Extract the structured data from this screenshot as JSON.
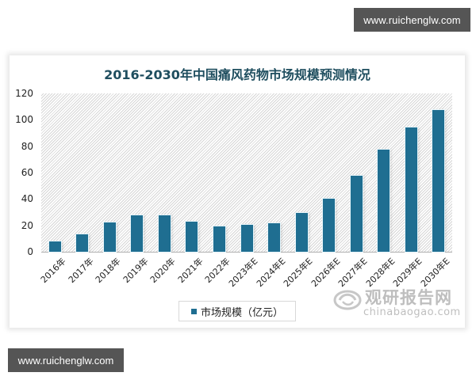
{
  "watermark": {
    "top_text": "www.ruichenglw.com",
    "bottom_text": "www.ruichenglw.com"
  },
  "logo": {
    "cn_text": "观研报告网",
    "en_text": "chinabaogao.com"
  },
  "colors": {
    "bar": "#1f6e91",
    "title": "#1f4e5f",
    "watermark_bg": "#555555"
  },
  "chart_data": {
    "type": "bar",
    "title": "2016-2030年中国痛风药物市场规模预测情况",
    "xlabel": "",
    "ylabel": "",
    "categories": [
      "2016年",
      "2017年",
      "2018年",
      "2019年",
      "2020年",
      "2021年",
      "2022年",
      "2023年E",
      "2024年E",
      "2025年E",
      "2026年E",
      "2027年E",
      "2028年E",
      "2029年E",
      "2030年E"
    ],
    "series": [
      {
        "name": "市场规模（亿元）",
        "values": [
          8,
          13.5,
          22.5,
          27.5,
          27.5,
          23,
          19.5,
          20.5,
          21.5,
          29.5,
          40,
          57.5,
          77.5,
          94,
          107.5
        ]
      }
    ],
    "ylim": [
      0,
      120
    ],
    "yticks": [
      0,
      20,
      40,
      60,
      80,
      100,
      120
    ],
    "grid": false,
    "background": "diagonal hatch",
    "legend_position": "bottom-center"
  }
}
